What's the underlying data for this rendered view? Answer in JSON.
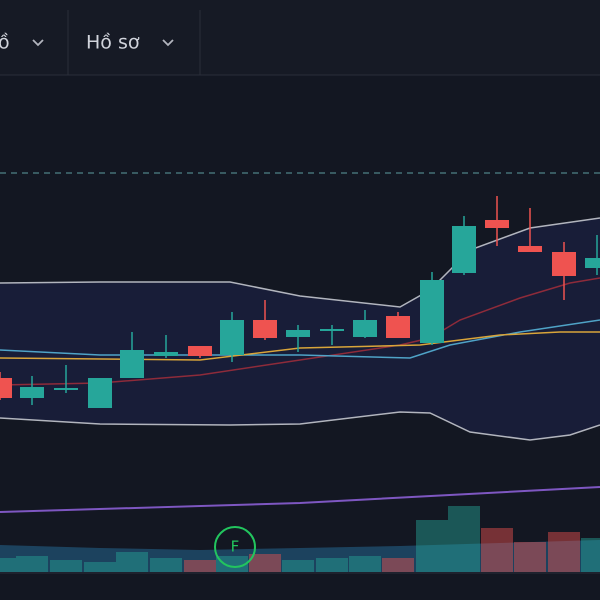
{
  "toolbar": {
    "items": [
      "ồ",
      "Hồ sơ"
    ]
  },
  "chart": {
    "marker": "F"
  }
}
